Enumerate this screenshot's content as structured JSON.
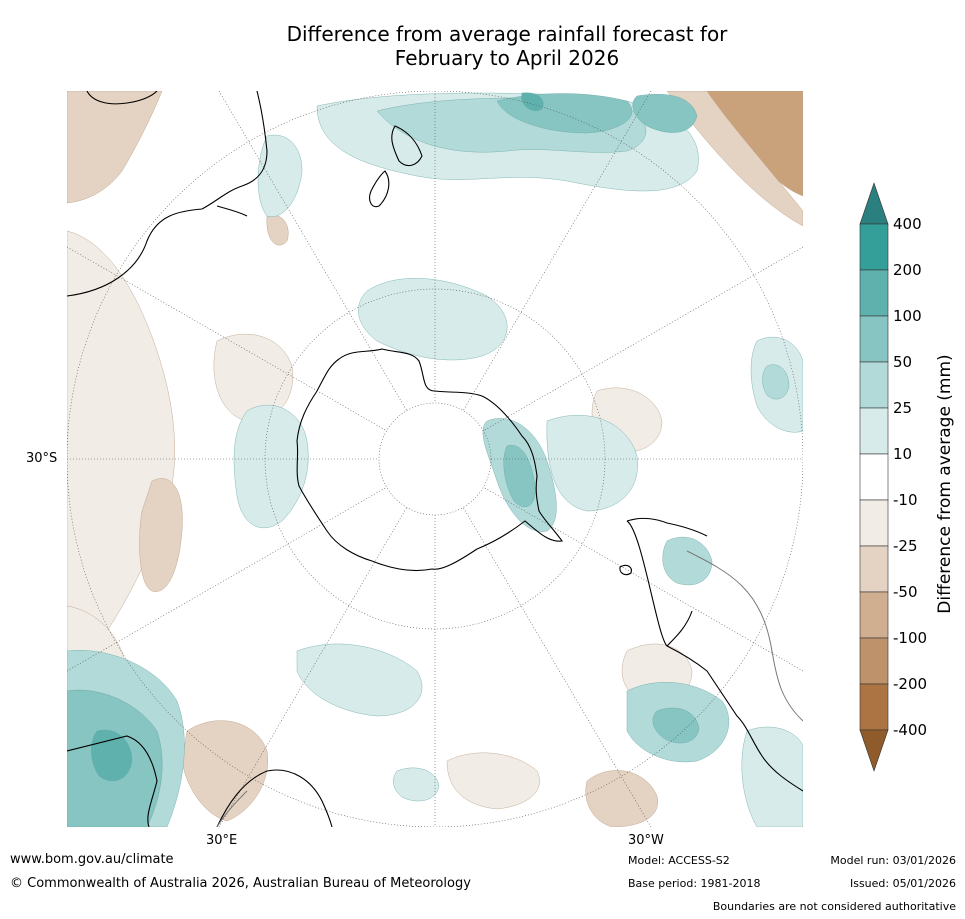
{
  "title_line1": "Difference from average rainfall forecast for",
  "title_line2": "February to April 2026",
  "graticule": {
    "lat_label": "30°S",
    "lon_labels": [
      "30°E",
      "30°W"
    ]
  },
  "colorbar": {
    "label": "Difference from average (mm)",
    "ticks": [
      "400",
      "200",
      "100",
      "50",
      "25",
      "10",
      "-10",
      "-25",
      "-50",
      "-100",
      "-200",
      "-400"
    ],
    "colors": [
      "#2b7f7e",
      "#349e99",
      "#5fb1ae",
      "#86c5c2",
      "#b1dad9",
      "#d6ebea",
      "#ffffff",
      "#f2ece6",
      "#e4d2c2",
      "#cfaf8f",
      "#be926a",
      "#ac7443",
      "#8f5b2a"
    ]
  },
  "footer": {
    "url": "www.bom.gov.au/climate",
    "copyright": "© Commonwealth of Australia 2026, Australian Bureau of Meteorology",
    "model": "Model: ACCESS-S2",
    "base_period": "Base period: 1981-2018",
    "model_run": "Model run: 03/01/2026",
    "issued": "Issued: 05/01/2026",
    "disclaimer": "Boundaries are not considered authoritative"
  }
}
